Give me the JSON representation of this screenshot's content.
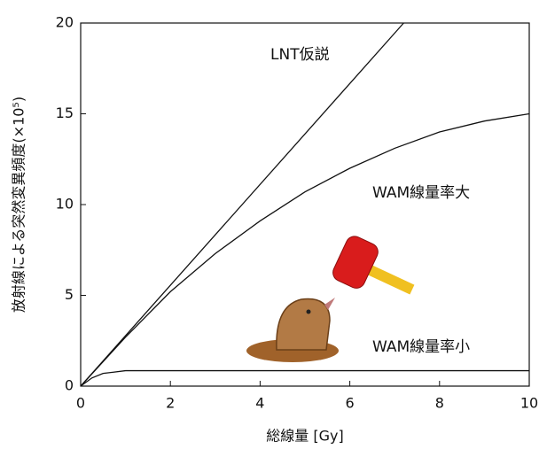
{
  "chart_data": {
    "type": "line",
    "x_label": "総線量 [Gy]",
    "y_label": "放射線による突然変異頻度(×10⁵)",
    "xlim": [
      0,
      10
    ],
    "xticks": [
      0,
      2,
      4,
      6,
      8,
      10
    ],
    "ylim": [
      0,
      20
    ],
    "yticks": [
      0,
      5,
      10,
      15,
      20
    ],
    "series": [
      {
        "name": "LNT仮説",
        "color": "#111111",
        "x": [
          0,
          7.2
        ],
        "values": [
          0,
          20
        ]
      },
      {
        "name": "WAM線量率大",
        "color": "#111111",
        "x": [
          0,
          1,
          2,
          3,
          4,
          5,
          6,
          7,
          8,
          9,
          10
        ],
        "values": [
          0,
          2.7,
          5.2,
          7.3,
          9.1,
          10.7,
          12.0,
          13.1,
          14.0,
          14.6,
          15.0
        ]
      },
      {
        "name": "WAM線量率小",
        "color": "#111111",
        "x": [
          0,
          0.25,
          0.5,
          1,
          10
        ],
        "values": [
          0,
          0.45,
          0.7,
          0.85,
          0.85
        ]
      }
    ]
  }
}
